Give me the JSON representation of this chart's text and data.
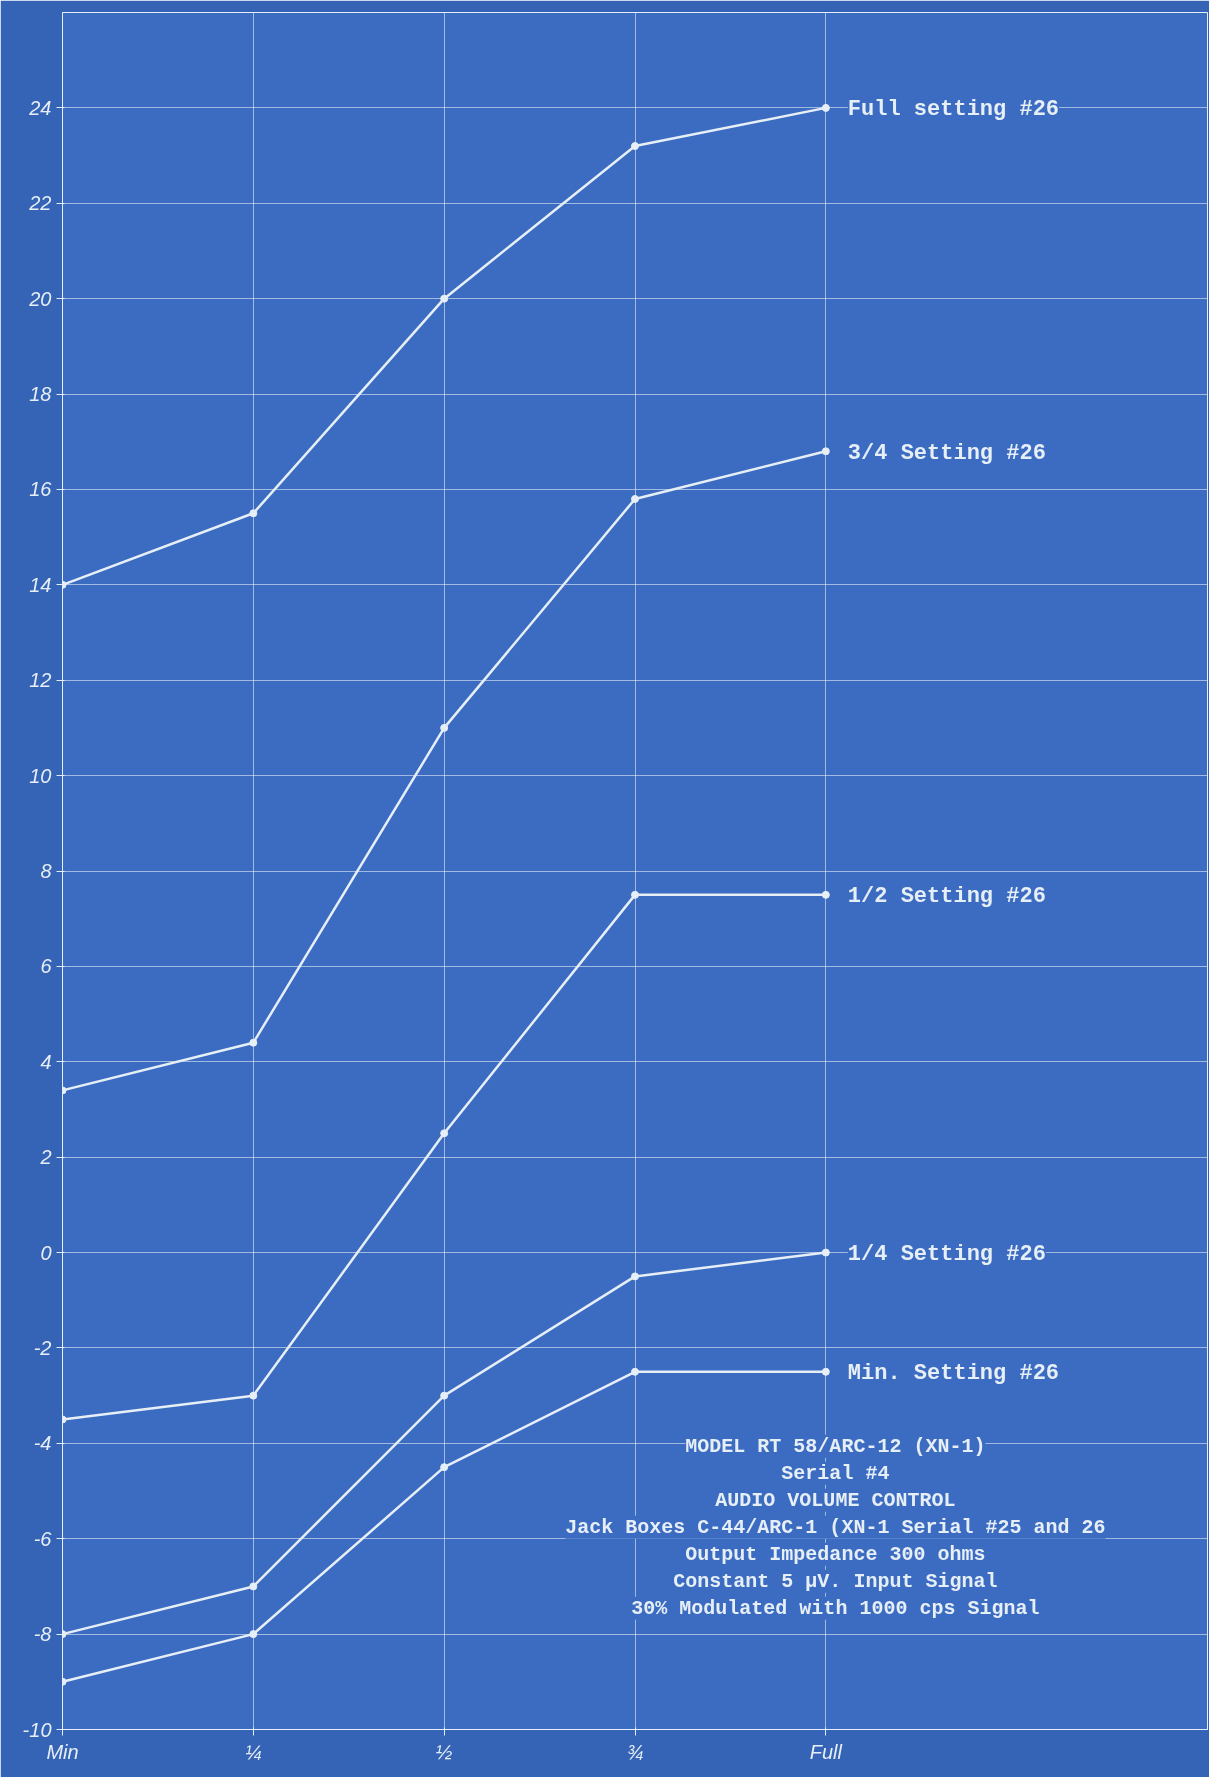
{
  "chart_data": {
    "type": "line",
    "categories": [
      "Min",
      "¼",
      "½",
      "¾",
      "Full"
    ],
    "ylim": [
      -10,
      26
    ],
    "yticks": [
      -10,
      -8,
      -6,
      -4,
      -2,
      0,
      2,
      4,
      6,
      8,
      10,
      12,
      14,
      16,
      18,
      20,
      22,
      24
    ],
    "series": [
      {
        "name": "Full setting #26",
        "color": "#e6eef6",
        "values": [
          14,
          15.5,
          20,
          23.2,
          24
        ]
      },
      {
        "name": "3/4 Setting #26",
        "color": "#e6eef6",
        "values": [
          3.4,
          4.4,
          11,
          15.8,
          16.8
        ]
      },
      {
        "name": "1/2 Setting #26",
        "color": "#e6eef6",
        "values": [
          -3.5,
          -3,
          2.5,
          7.5,
          7.5
        ]
      },
      {
        "name": "1/4 Setting #26",
        "color": "#e6eef6",
        "values": [
          -8,
          -7,
          -3,
          -0.5,
          0
        ]
      },
      {
        "name": "Min. Setting #26",
        "color": "#e6eef6",
        "values": [
          -9,
          -8,
          -4.5,
          -2.5,
          -2.5
        ]
      }
    ],
    "annotations": [
      "MODEL RT 58/ARC-12 (XN-1)",
      "Serial #4",
      "AUDIO VOLUME CONTROL",
      "Jack Boxes C-44/ARC-1 (XN-1 Serial #25 and 26",
      "Output Impedance 300 ohms",
      "Constant 5 µV. Input Signal",
      "30% Modulated with 1000 cps Signal"
    ],
    "grid": true,
    "legend": false,
    "marker": "circle",
    "line_style": "solid"
  }
}
